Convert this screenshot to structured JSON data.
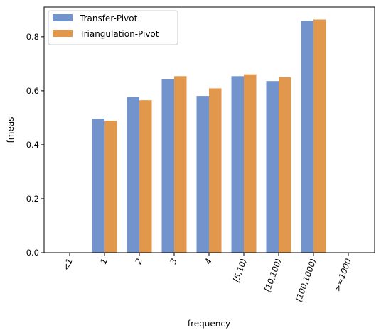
{
  "chart_data": {
    "type": "bar",
    "title": "",
    "xlabel": "frequency",
    "ylabel": "fmeas",
    "categories": [
      "<1",
      "1",
      "2",
      "3",
      "4",
      "[5,10)",
      "[10,100)",
      "[100,1000)",
      ">=1000"
    ],
    "series": [
      {
        "name": "Transfer-Pivot",
        "color": "#7293cb",
        "values": [
          0,
          0.497,
          0.577,
          0.642,
          0.581,
          0.654,
          0.636,
          0.859,
          0
        ]
      },
      {
        "name": "Triangulation-Pivot",
        "color": "#e1974c",
        "values": [
          0,
          0.489,
          0.565,
          0.654,
          0.609,
          0.661,
          0.65,
          0.864,
          0
        ]
      }
    ],
    "ylim": [
      0,
      0.91
    ],
    "yticks": [
      0.0,
      0.2,
      0.4,
      0.6,
      0.8
    ],
    "ytick_labels": [
      "0.0",
      "0.2",
      "0.4",
      "0.6",
      "0.8"
    ],
    "grid": false,
    "legend_position": "top-left",
    "xtick_rotation": "rotated"
  }
}
